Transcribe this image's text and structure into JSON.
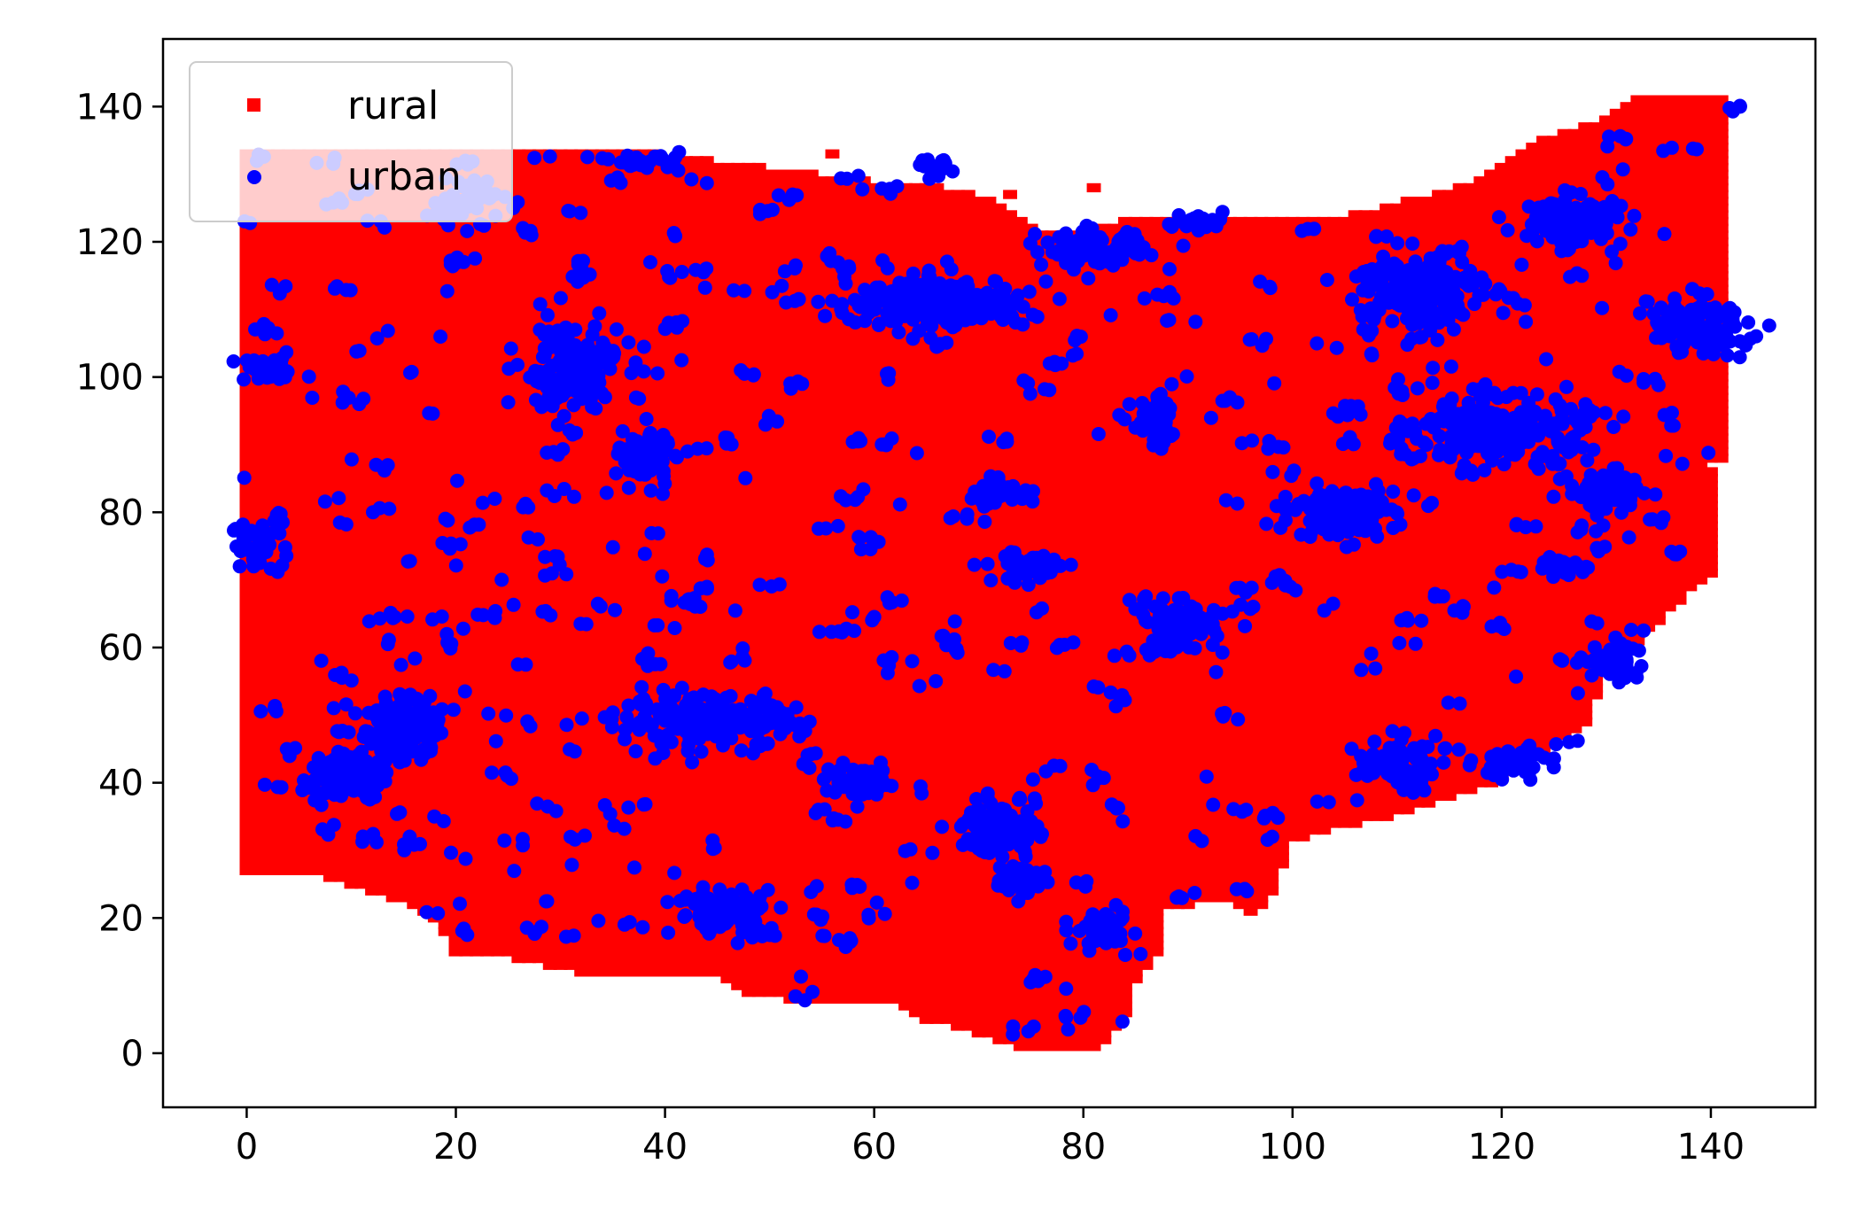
{
  "chart_data": {
    "type": "scatter",
    "title": "",
    "xlabel": "",
    "ylabel": "",
    "xlim": [
      -8,
      150
    ],
    "ylim": [
      -8,
      150
    ],
    "xticks": [
      0,
      20,
      40,
      60,
      80,
      100,
      120,
      140
    ],
    "yticks": [
      0,
      20,
      40,
      60,
      80,
      100,
      120,
      140
    ],
    "grid": false,
    "legend": {
      "placement": "top-left"
    },
    "region_outline": [
      [
        0,
        27
      ],
      [
        0,
        133
      ],
      [
        34,
        134
      ],
      [
        60,
        129
      ],
      [
        67,
        128
      ],
      [
        72,
        126
      ],
      [
        76,
        122
      ],
      [
        80,
        121
      ],
      [
        86,
        124
      ],
      [
        100,
        123
      ],
      [
        106,
        124
      ],
      [
        116,
        128
      ],
      [
        124,
        135
      ],
      [
        130,
        138
      ],
      [
        134,
        142
      ],
      [
        142,
        142
      ],
      [
        142,
        88
      ],
      [
        140,
        87
      ],
      [
        141,
        72
      ],
      [
        138,
        68
      ],
      [
        134,
        62
      ],
      [
        130,
        57
      ],
      [
        128,
        48
      ],
      [
        124,
        44
      ],
      [
        118,
        39
      ],
      [
        112,
        36
      ],
      [
        104,
        33
      ],
      [
        100,
        31
      ],
      [
        98,
        23
      ],
      [
        96,
        20
      ],
      [
        94,
        23
      ],
      [
        91,
        22
      ],
      [
        88,
        22
      ],
      [
        87,
        14
      ],
      [
        85,
        10
      ],
      [
        84,
        5
      ],
      [
        82,
        1
      ],
      [
        78,
        0
      ],
      [
        74,
        1
      ],
      [
        70,
        3
      ],
      [
        65,
        5
      ],
      [
        62,
        8
      ],
      [
        56,
        8
      ],
      [
        52,
        8
      ],
      [
        48,
        9
      ],
      [
        44,
        12
      ],
      [
        40,
        12
      ],
      [
        36,
        11
      ],
      [
        32,
        12
      ],
      [
        26,
        14
      ],
      [
        20,
        15
      ],
      [
        18,
        20
      ],
      [
        14,
        23
      ],
      [
        8,
        26
      ],
      [
        4,
        27
      ]
    ],
    "series": [
      {
        "name": "rural",
        "marker": "square",
        "color": "#ff0000",
        "grid_step": 1,
        "x_range": [
          0,
          142
        ],
        "y_range": [
          0,
          142
        ],
        "points": [
          [
            56,
            133
          ],
          [
            81,
            128
          ],
          [
            73,
            127
          ]
        ]
      },
      {
        "name": "urban",
        "marker": "circle",
        "color": "#0000ff",
        "clusters": [
          {
            "center": [
              2,
              101
            ],
            "spread": [
              3,
              1.5
            ],
            "count": 40
          },
          {
            "center": [
              1,
              75
            ],
            "spread": [
              2,
              3
            ],
            "count": 40
          },
          {
            "center": [
              15,
              48
            ],
            "spread": [
              3,
              4
            ],
            "count": 140
          },
          {
            "center": [
              9,
              41
            ],
            "spread": [
              3,
              3
            ],
            "count": 100
          },
          {
            "center": [
              31,
              101
            ],
            "spread": [
              4,
              6
            ],
            "count": 160
          },
          {
            "center": [
              38,
              88
            ],
            "spread": [
              2,
              3
            ],
            "count": 60
          },
          {
            "center": [
              44,
              49
            ],
            "spread": [
              7,
              3
            ],
            "count": 220
          },
          {
            "center": [
              46,
              21
            ],
            "spread": [
              4,
              3
            ],
            "count": 100
          },
          {
            "center": [
              66,
              111
            ],
            "spread": [
              7,
              3
            ],
            "count": 220
          },
          {
            "center": [
              66,
              131
            ],
            "spread": [
              1.5,
              1
            ],
            "count": 20
          },
          {
            "center": [
              38,
              132
            ],
            "spread": [
              3,
              1
            ],
            "count": 30
          },
          {
            "center": [
              21,
              126
            ],
            "spread": [
              3,
              3
            ],
            "count": 50
          },
          {
            "center": [
              81,
              119
            ],
            "spread": [
              4,
              2
            ],
            "count": 100
          },
          {
            "center": [
              87,
              93
            ],
            "spread": [
              2,
              3
            ],
            "count": 50
          },
          {
            "center": [
              75,
              72
            ],
            "spread": [
              3,
              2
            ],
            "count": 60
          },
          {
            "center": [
              89,
              63
            ],
            "spread": [
              3,
              3
            ],
            "count": 90
          },
          {
            "center": [
              72,
              33
            ],
            "spread": [
              3,
              3
            ],
            "count": 110
          },
          {
            "center": [
              74,
              26
            ],
            "spread": [
              2,
              2
            ],
            "count": 50
          },
          {
            "center": [
              82,
              18
            ],
            "spread": [
              2,
              2
            ],
            "count": 40
          },
          {
            "center": [
              59,
              40
            ],
            "spread": [
              3,
              2
            ],
            "count": 60
          },
          {
            "center": [
              72,
              83
            ],
            "spread": [
              3,
              1.5
            ],
            "count": 40
          },
          {
            "center": [
              105,
              80
            ],
            "spread": [
              4,
              3
            ],
            "count": 140
          },
          {
            "center": [
              112,
              113
            ],
            "spread": [
              5,
              5
            ],
            "count": 200
          },
          {
            "center": [
              120,
              92
            ],
            "spread": [
              7,
              4
            ],
            "count": 220
          },
          {
            "center": [
              127,
              123
            ],
            "spread": [
              4,
              3
            ],
            "count": 110
          },
          {
            "center": [
              130,
              83
            ],
            "spread": [
              3,
              3
            ],
            "count": 80
          },
          {
            "center": [
              139,
              107
            ],
            "spread": [
              4,
              3
            ],
            "count": 100
          },
          {
            "center": [
              110,
              43
            ],
            "spread": [
              3,
              3
            ],
            "count": 70
          },
          {
            "center": [
              121,
              43
            ],
            "spread": [
              3,
              2
            ],
            "count": 40
          },
          {
            "center": [
              131,
              58
            ],
            "spread": [
              2,
              3
            ],
            "count": 40
          },
          {
            "center": [
              126,
              72
            ],
            "spread": [
              2,
              1
            ],
            "count": 30
          },
          {
            "center": [
              91,
              123
            ],
            "spread": [
              2,
              1
            ],
            "count": 30
          }
        ],
        "scatter_count": 420
      }
    ]
  }
}
